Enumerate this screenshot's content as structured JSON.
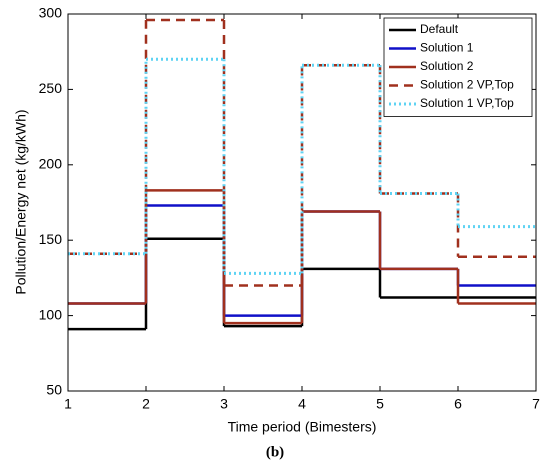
{
  "chart_data": {
    "type": "step",
    "xlabel": "Time period (Bimesters)",
    "ylabel": "Pollution/Energy net (kg/kWh)",
    "caption": "(b)",
    "x": [
      1,
      2,
      3,
      4,
      5,
      6
    ],
    "xlim": [
      1,
      7
    ],
    "xticks": [
      1,
      2,
      3,
      4,
      5,
      6,
      7
    ],
    "ylim": [
      50,
      300
    ],
    "yticks": [
      50,
      100,
      150,
      200,
      250,
      300
    ],
    "legend": "upper right",
    "series": [
      {
        "name": "Default",
        "color": "#000000",
        "style": "solid",
        "values": [
          91,
          151,
          93,
          131,
          112,
          112
        ]
      },
      {
        "name": "Solution 1",
        "color": "#1010c8",
        "style": "solid",
        "values": [
          108,
          173,
          100,
          169,
          131,
          120
        ]
      },
      {
        "name": "Solution 2",
        "color": "#a0301e",
        "style": "solid",
        "values": [
          108,
          183,
          95,
          169,
          131,
          108
        ]
      },
      {
        "name": "Solution 2 VP,Top",
        "color": "#a0301e",
        "style": "dashed",
        "values": [
          141,
          296,
          120,
          266,
          181,
          139
        ]
      },
      {
        "name": "Solution 1 VP,Top",
        "color": "#5fd3f3",
        "style": "dotted",
        "values": [
          141,
          270,
          128,
          266,
          181,
          159
        ]
      }
    ]
  }
}
